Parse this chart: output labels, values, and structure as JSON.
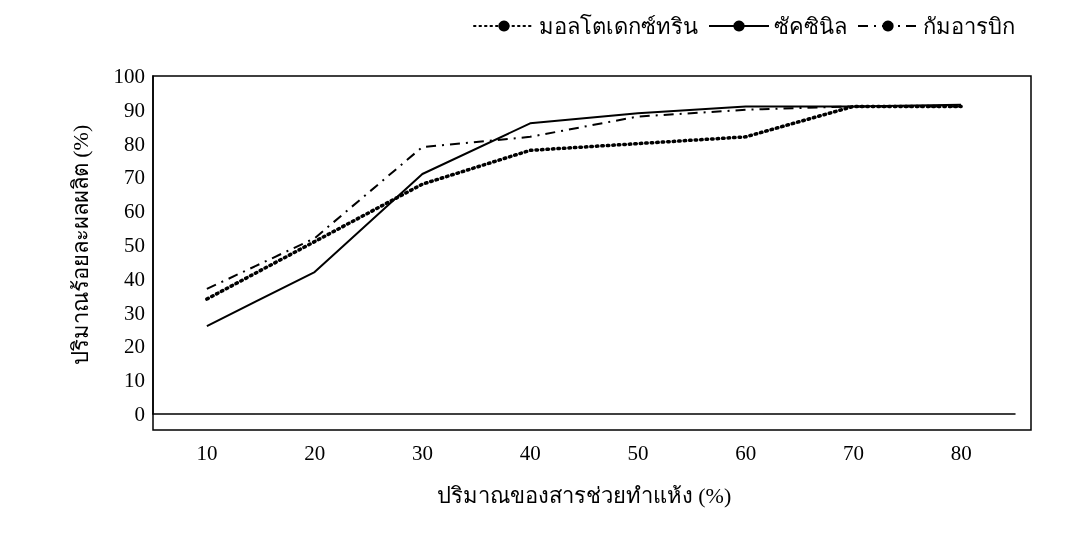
{
  "chart_data": {
    "type": "line",
    "xlabel": "ปริมาณของสารช่วยทำแห้ง (%)",
    "ylabel": "ปริมาณร้อยละผลผลิต (%)",
    "categories": [
      "10",
      "20",
      "30",
      "40",
      "50",
      "60",
      "70",
      "80"
    ],
    "series": [
      {
        "name": "มอลโตเดกซ์ทริน",
        "color": "#000000",
        "line_style": "dotted",
        "values": [
          34,
          51,
          68,
          78,
          80,
          82,
          91,
          91
        ]
      },
      {
        "name": "ซัคซินิล",
        "color": "#000000",
        "line_style": "solid",
        "values": [
          26,
          42,
          71,
          86,
          89,
          91,
          91,
          91.5
        ]
      },
      {
        "name": "กัมอารบิก",
        "color": "#000000",
        "line_style": "dashdot",
        "values": [
          37,
          52,
          79,
          82,
          88,
          90,
          91,
          91
        ]
      }
    ],
    "ylim": [
      0,
      100
    ],
    "yticks": [
      0,
      10,
      20,
      30,
      40,
      50,
      60,
      70,
      80,
      90,
      100
    ],
    "grid": false,
    "legend": "top right",
    "marker": "none"
  }
}
